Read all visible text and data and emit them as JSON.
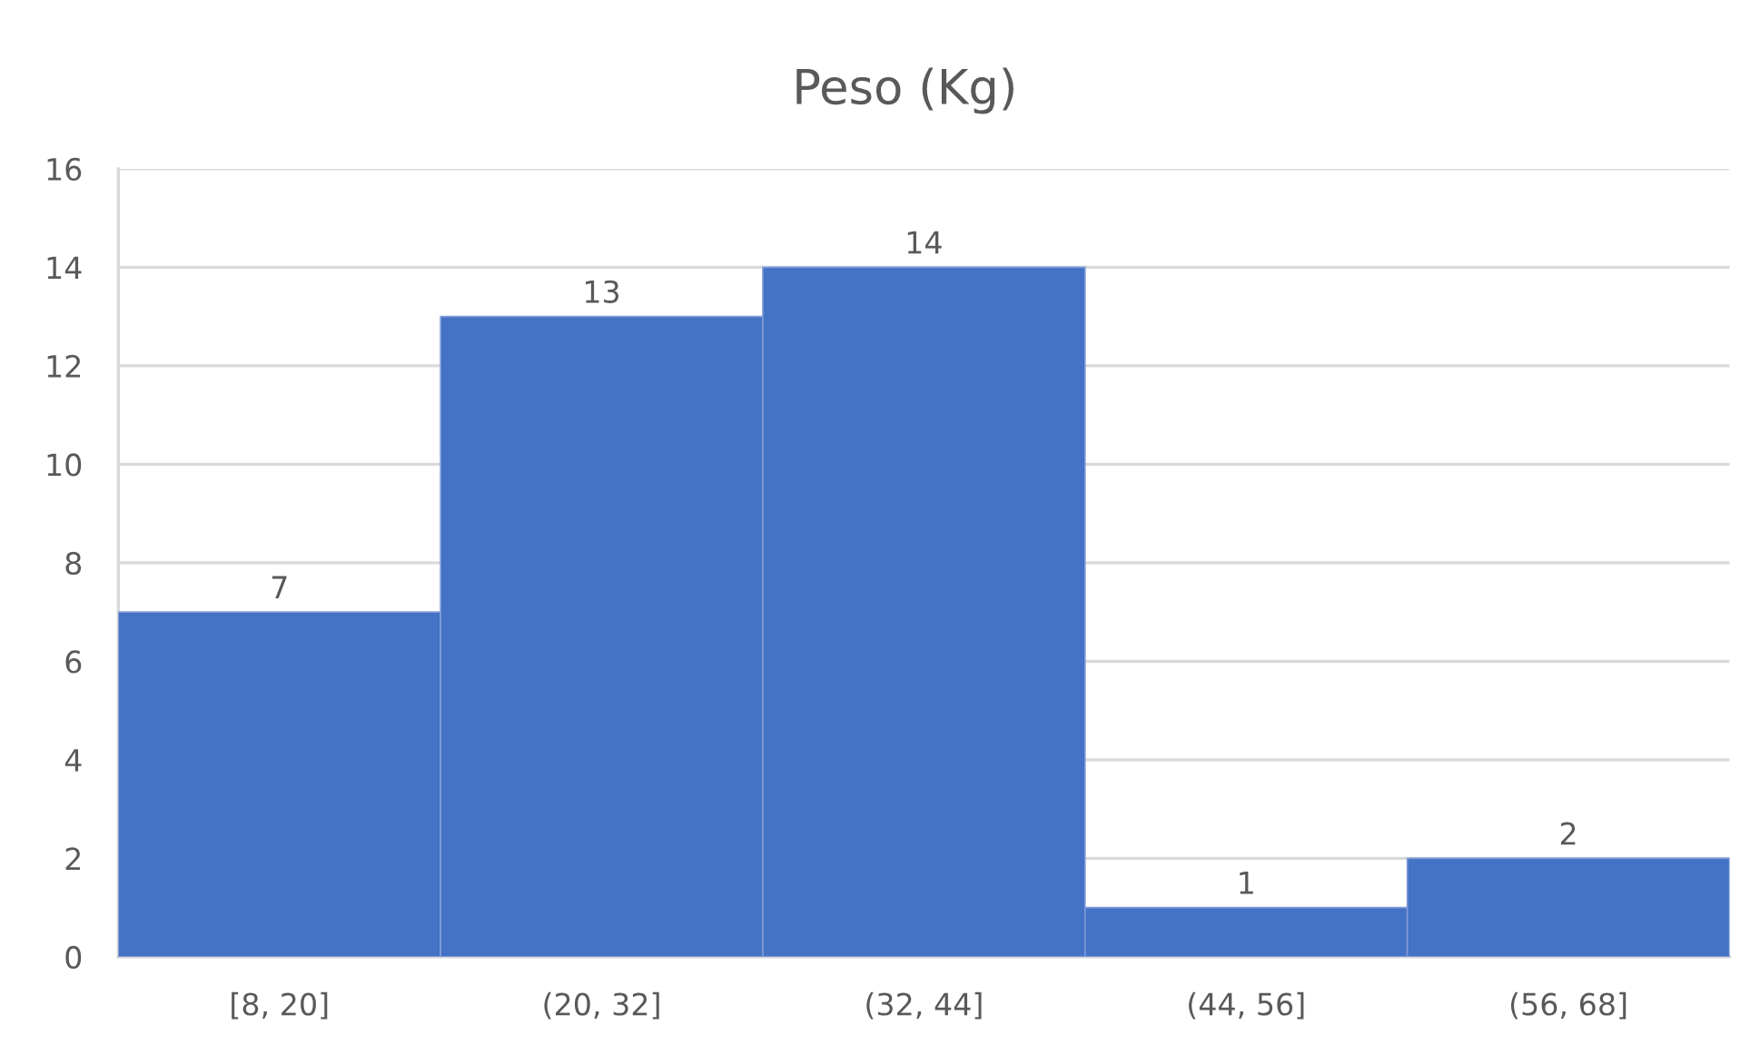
{
  "chart_data": {
    "type": "bar",
    "title": "Peso (Kg)",
    "categories": [
      "[8, 20]",
      "(20, 32]",
      "(32, 44]",
      "(44, 56]",
      "(56, 68]"
    ],
    "values": [
      7,
      13,
      14,
      1,
      2
    ],
    "color": "#4472c4",
    "ylim": [
      0,
      16
    ],
    "yticks": [
      0,
      2,
      4,
      6,
      8,
      10,
      12,
      14,
      16
    ],
    "grid": "y",
    "data_labels": true
  }
}
